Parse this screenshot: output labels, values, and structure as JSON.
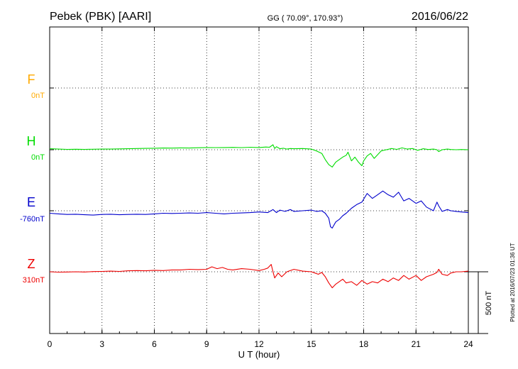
{
  "chart_data": {
    "type": "line",
    "title": "Pebek (PBK)  [AARI]",
    "subtitle": "GG ( 70.09°, 170.93°)",
    "date": "2016/06/22",
    "xlabel": "U T (hour)",
    "xlim": [
      0,
      24
    ],
    "xticks": [
      0,
      3,
      6,
      9,
      12,
      15,
      18,
      21,
      24
    ],
    "grid": true,
    "scale_bar_label": "500 nT",
    "scale_bar_nT": 500,
    "footer": "Plotted at 2016/07/23 01:36 UT",
    "series": [
      {
        "name": "F",
        "baseline_label": "0nT",
        "baseline_nT": 0,
        "color": "#ffaa00",
        "x": [],
        "y": []
      },
      {
        "name": "H",
        "baseline_label": "0nT",
        "baseline_nT": 0,
        "color": "#00dd00",
        "x": [
          0,
          0.5,
          1,
          1.5,
          2,
          2.5,
          3,
          3.5,
          4,
          4.5,
          5,
          5.5,
          6,
          6.5,
          7,
          7.5,
          8,
          8.5,
          9,
          9.5,
          10,
          10.5,
          11,
          11.5,
          12,
          12.4,
          12.6,
          12.8,
          12.9,
          13,
          13.2,
          13.4,
          13.6,
          13.8,
          14,
          14.5,
          15,
          15.3,
          15.6,
          15.8,
          16,
          16.2,
          16.4,
          16.6,
          16.8,
          17,
          17.1,
          17.3,
          17.5,
          17.7,
          17.9,
          18,
          18.2,
          18.4,
          18.6,
          18.8,
          19,
          19.3,
          19.6,
          19.9,
          20.2,
          20.5,
          20.8,
          21.1,
          21.4,
          21.7,
          22,
          22.2,
          22.3,
          22.5,
          22.8,
          23,
          23.3,
          23.6,
          24
        ],
        "y": [
          8,
          5,
          3,
          4,
          3,
          4,
          6,
          5,
          7,
          8,
          10,
          11,
          12,
          14,
          13,
          15,
          14,
          16,
          18,
          17,
          18,
          19,
          17,
          20,
          18,
          22,
          20,
          40,
          10,
          25,
          8,
          12,
          5,
          10,
          8,
          10,
          5,
          -10,
          -30,
          -80,
          -120,
          -140,
          -100,
          -80,
          -60,
          -45,
          -20,
          -90,
          -60,
          -100,
          -130,
          -90,
          -50,
          -30,
          -70,
          -40,
          -10,
          0,
          10,
          3,
          15,
          5,
          10,
          -5,
          8,
          2,
          5,
          0,
          -15,
          0,
          5,
          2,
          0,
          2,
          0
        ]
      },
      {
        "name": "E",
        "baseline_label": "-760nT",
        "baseline_nT": -760,
        "color": "#0000cc",
        "x": [
          0,
          0.5,
          1,
          1.5,
          2,
          2.5,
          3,
          3.5,
          4,
          4.5,
          5,
          5.5,
          6,
          6.5,
          7,
          7.5,
          8,
          8.5,
          9,
          9.5,
          10,
          10.5,
          11,
          11.5,
          12,
          12.5,
          12.8,
          13,
          13.2,
          13.5,
          13.8,
          14,
          14.5,
          15,
          15.3,
          15.6,
          15.8,
          16,
          16.1,
          16.2,
          16.4,
          16.6,
          16.8,
          17,
          17.3,
          17.6,
          17.9,
          18.2,
          18.5,
          18.8,
          19.1,
          19.4,
          19.7,
          20,
          20.3,
          20.6,
          21,
          21.3,
          21.6,
          22,
          22.2,
          22.3,
          22.5,
          22.8,
          23,
          23.3,
          23.6,
          24
        ],
        "y": [
          -20,
          -25,
          -30,
          -28,
          -32,
          -35,
          -30,
          -28,
          -32,
          -30,
          -28,
          -30,
          -25,
          -20,
          -22,
          -20,
          -18,
          -20,
          -15,
          -20,
          -25,
          -20,
          -18,
          -15,
          -10,
          -15,
          10,
          -15,
          5,
          -5,
          10,
          -5,
          0,
          5,
          -5,
          0,
          -20,
          -60,
          -130,
          -140,
          -90,
          -70,
          -40,
          -20,
          20,
          50,
          70,
          140,
          100,
          130,
          160,
          130,
          110,
          150,
          80,
          100,
          60,
          80,
          30,
          0,
          70,
          40,
          -5,
          10,
          0,
          -5,
          -10,
          -15
        ]
      },
      {
        "name": "Z",
        "baseline_label": "310nT",
        "baseline_nT": 310,
        "color": "#ee0000",
        "x": [
          0,
          0.5,
          1,
          1.5,
          2,
          2.5,
          3,
          3.5,
          4,
          4.5,
          5,
          5.5,
          6,
          6.5,
          7,
          7.5,
          8,
          8.5,
          9,
          9.3,
          9.6,
          9.9,
          10.2,
          10.5,
          11,
          11.5,
          12,
          12.3,
          12.5,
          12.7,
          12.8,
          12.9,
          13.1,
          13.3,
          13.6,
          14,
          14.5,
          15,
          15.2,
          15.4,
          15.6,
          15.8,
          16,
          16.2,
          16.4,
          16.6,
          16.8,
          17,
          17.3,
          17.6,
          17.9,
          18.2,
          18.5,
          18.8,
          19.1,
          19.4,
          19.7,
          20,
          20.3,
          20.6,
          21,
          21.3,
          21.6,
          22,
          22.2,
          22.3,
          22.5,
          22.8,
          23,
          23.3,
          23.6,
          24
        ],
        "y": [
          0,
          -3,
          -2,
          0,
          -2,
          2,
          3,
          5,
          3,
          8,
          10,
          8,
          12,
          10,
          15,
          15,
          20,
          18,
          20,
          40,
          25,
          35,
          20,
          15,
          25,
          20,
          10,
          20,
          30,
          60,
          0,
          -50,
          -10,
          -40,
          0,
          20,
          5,
          0,
          -10,
          -20,
          -5,
          -40,
          -90,
          -130,
          -100,
          -80,
          -60,
          -90,
          -80,
          -110,
          -70,
          -100,
          -80,
          -90,
          -60,
          -80,
          -50,
          -70,
          -30,
          -60,
          -30,
          -70,
          -40,
          -20,
          -5,
          20,
          -20,
          -30,
          -10,
          0,
          0,
          5
        ]
      }
    ]
  }
}
